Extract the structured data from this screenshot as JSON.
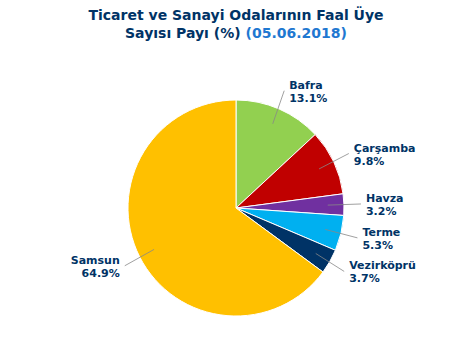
{
  "chart_data": {
    "type": "pie",
    "title": "Ticaret ve Sanayi Odalarının Faal Üye\nSayısı Payı (%)",
    "subtitle": "(05.06.2018)",
    "categories": [
      "Bafra",
      "Çarşamba",
      "Havza",
      "Terme",
      "Vezirköprü",
      "Samsun"
    ],
    "values": [
      13.1,
      9.8,
      3.2,
      5.3,
      3.7,
      64.9
    ],
    "value_labels": [
      "13.1%",
      "9.8%",
      "3.2%",
      "5.3%",
      "3.7%",
      "64.9%"
    ],
    "colors": [
      "#92d050",
      "#c00000",
      "#7030a0",
      "#00b0f0",
      "#003366",
      "#ffc000"
    ],
    "data_labels": true
  }
}
